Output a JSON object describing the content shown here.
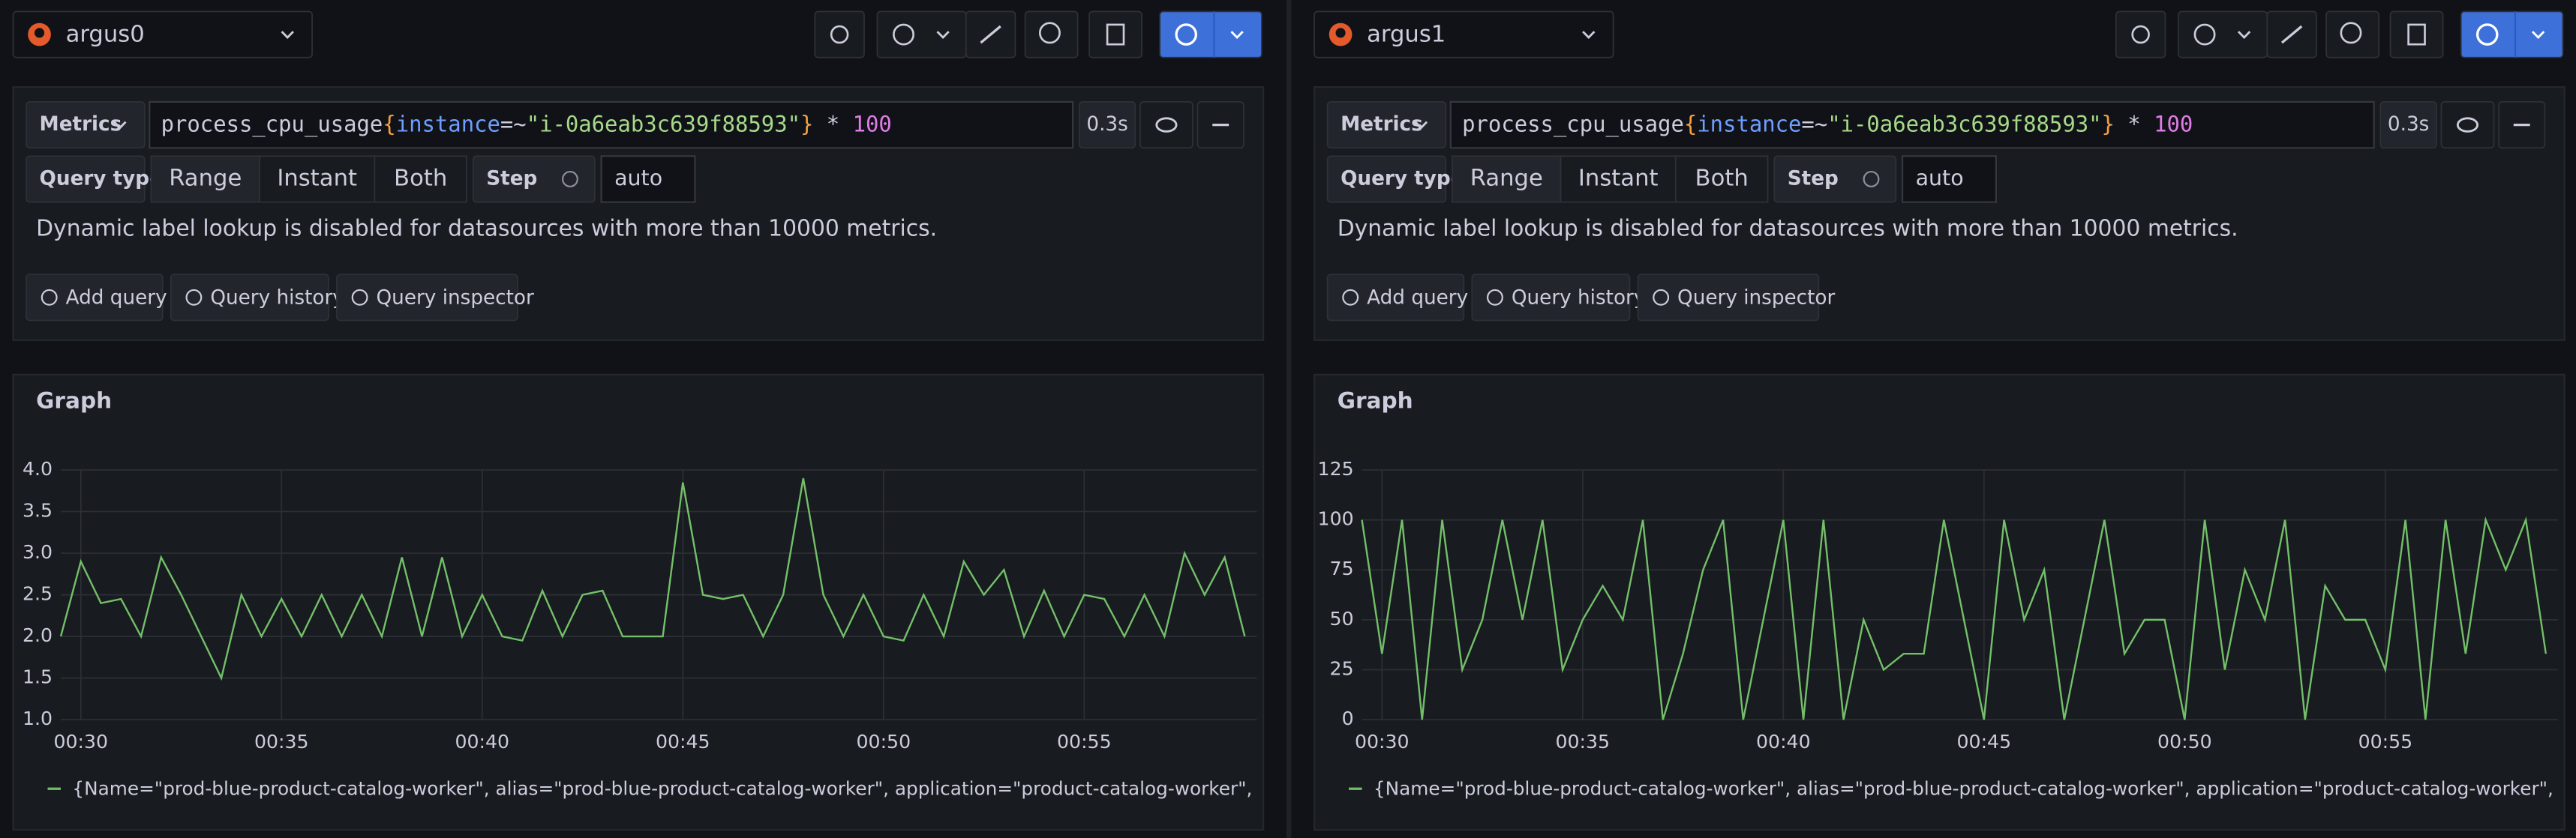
{
  "panes": [
    {
      "datasource": "argus0",
      "query": {
        "label": "Metrics",
        "tokens": [
          {
            "text": "process_cpu_usage",
            "color": "#ccccdc"
          },
          {
            "text": "{",
            "color": "#f5a142"
          },
          {
            "text": "instance",
            "color": "#6e9fff"
          },
          {
            "text": "=~",
            "color": "#ccccdc"
          },
          {
            "text": "\"i-0a6eab3c639f88593\"",
            "color": "#a6d98a"
          },
          {
            "text": "}",
            "color": "#f5a142"
          },
          {
            "text": " * ",
            "color": "#ccccdc"
          },
          {
            "text": "100",
            "color": "#e07ce8"
          }
        ],
        "duration": "0.3s",
        "query_type_label": "Query type",
        "query_types": [
          "Range",
          "Instant",
          "Both"
        ],
        "selected_query_type": "Range",
        "step_label": "Step",
        "step_placeholder": "auto",
        "warning": "Dynamic label lookup is disabled for datasources with more than 10000 metrics.",
        "buttons": [
          "Add query",
          "Query history",
          "Query inspector"
        ]
      }
    },
    {
      "datasource": "argus1",
      "query": {
        "label": "Metrics",
        "tokens": [
          {
            "text": "process_cpu_usage",
            "color": "#ccccdc"
          },
          {
            "text": "{",
            "color": "#f5a142"
          },
          {
            "text": "instance",
            "color": "#6e9fff"
          },
          {
            "text": "=~",
            "color": "#ccccdc"
          },
          {
            "text": "\"i-0a6eab3c639f88593\"",
            "color": "#a6d98a"
          },
          {
            "text": "}",
            "color": "#f5a142"
          },
          {
            "text": " * ",
            "color": "#ccccdc"
          },
          {
            "text": "100",
            "color": "#e07ce8"
          }
        ],
        "duration": "0.3s",
        "query_type_label": "Query type",
        "query_types": [
          "Range",
          "Instant",
          "Both"
        ],
        "selected_query_type": "Range",
        "step_label": "Step",
        "step_placeholder": "auto",
        "warning": "Dynamic label lookup is disabled for datasources with more than 10000 metrics.",
        "buttons": [
          "Add query",
          "Query history",
          "Query inspector"
        ]
      }
    }
  ],
  "chart_data": [
    {
      "type": "line",
      "title": "Graph",
      "x": [
        29.5,
        30,
        30.5,
        31,
        31.5,
        32,
        32.5,
        33,
        33.5,
        34,
        34.5,
        35,
        35.5,
        36,
        36.5,
        37,
        37.5,
        38,
        38.5,
        39,
        39.5,
        40,
        40.5,
        41,
        41.5,
        42,
        42.5,
        43,
        43.5,
        44,
        44.5,
        45,
        45.5,
        46,
        46.5,
        47,
        47.5,
        48,
        48.5,
        49,
        49.5,
        50,
        50.5,
        51,
        51.5,
        52,
        52.5,
        53,
        53.5,
        54,
        54.5,
        55,
        55.5,
        56,
        56.5,
        57,
        57.5,
        58,
        58.5,
        59
      ],
      "series": [
        {
          "name": "{Name=\"prod-blue-product-catalog-worker\", alias=\"prod-blue-product-catalog-worker\", application=\"product-catalog-worker\", c_env=\"Production\", c_se",
          "color": "#73bf69",
          "values": [
            2.0,
            2.9,
            2.4,
            2.45,
            2.0,
            2.95,
            2.5,
            2.0,
            1.5,
            2.5,
            2.0,
            2.45,
            2.0,
            2.5,
            2.0,
            2.5,
            2.0,
            2.95,
            2.0,
            2.95,
            2.0,
            2.5,
            2.0,
            1.95,
            2.55,
            2.0,
            2.5,
            2.55,
            2.0,
            2.0,
            2.0,
            3.85,
            2.5,
            2.45,
            2.5,
            2.0,
            2.5,
            3.9,
            2.5,
            2.0,
            2.5,
            2.0,
            1.95,
            2.5,
            2.0,
            2.9,
            2.5,
            2.8,
            2.0,
            2.55,
            2.0,
            2.5,
            2.45,
            2.0,
            2.5,
            2.0,
            3.0,
            2.5,
            2.95,
            2.0
          ]
        }
      ],
      "xlim": [
        29.5,
        59.3
      ],
      "xticks": [
        {
          "value": 30,
          "label": "00:30"
        },
        {
          "value": 35,
          "label": "00:35"
        },
        {
          "value": 40,
          "label": "00:40"
        },
        {
          "value": 45,
          "label": "00:45"
        },
        {
          "value": 50,
          "label": "00:50"
        },
        {
          "value": 55,
          "label": "00:55"
        }
      ],
      "ylim": [
        1,
        4
      ],
      "yticks": [
        {
          "value": 1,
          "label": "1.0"
        },
        {
          "value": 1.5,
          "label": "1.5"
        },
        {
          "value": 2,
          "label": "2.0"
        },
        {
          "value": 2.5,
          "label": "2.5"
        },
        {
          "value": 3,
          "label": "3.0"
        },
        {
          "value": 3.5,
          "label": "3.5"
        },
        {
          "value": 4,
          "label": "4.0"
        }
      ],
      "grid": true
    },
    {
      "type": "line",
      "title": "Graph",
      "x": [
        29.5,
        30,
        30.5,
        31,
        31.5,
        32,
        32.5,
        33,
        33.5,
        34,
        34.5,
        35,
        35.5,
        36,
        36.5,
        37,
        37.5,
        38,
        38.5,
        39,
        39.5,
        40,
        40.5,
        41,
        41.5,
        42,
        42.5,
        43,
        43.5,
        44,
        44.5,
        45,
        45.5,
        46,
        46.5,
        47,
        47.5,
        48,
        48.5,
        49,
        49.5,
        50,
        50.5,
        51,
        51.5,
        52,
        52.5,
        53,
        53.5,
        54,
        54.5,
        55,
        55.5,
        56,
        56.5,
        57,
        57.5,
        58,
        58.5,
        59
      ],
      "series": [
        {
          "name": "{Name=\"prod-blue-product-catalog-worker\", alias=\"prod-blue-product-catalog-worker\", application=\"product-catalog-worker\", c_env=\"Production\", c_se",
          "color": "#73bf69",
          "values": [
            100,
            33,
            100,
            0,
            100,
            25,
            50,
            100,
            50,
            100,
            25,
            50,
            67,
            50,
            100,
            0,
            33,
            75,
            100,
            0,
            50,
            100,
            0,
            100,
            0,
            50,
            25,
            33,
            33,
            100,
            50,
            0,
            100,
            50,
            75,
            0,
            50,
            100,
            33,
            50,
            50,
            0,
            100,
            25,
            75,
            50,
            100,
            0,
            67,
            50,
            50,
            25,
            100,
            0,
            100,
            33,
            100,
            75,
            100,
            33
          ]
        }
      ],
      "xlim": [
        29.5,
        59.3
      ],
      "xticks": [
        {
          "value": 30,
          "label": "00:30"
        },
        {
          "value": 35,
          "label": "00:35"
        },
        {
          "value": 40,
          "label": "00:40"
        },
        {
          "value": 45,
          "label": "00:45"
        },
        {
          "value": 50,
          "label": "00:50"
        },
        {
          "value": 55,
          "label": "00:55"
        }
      ],
      "ylim": [
        0,
        125
      ],
      "yticks": [
        0,
        25,
        50,
        75,
        100,
        125
      ],
      "grid": true
    }
  ]
}
